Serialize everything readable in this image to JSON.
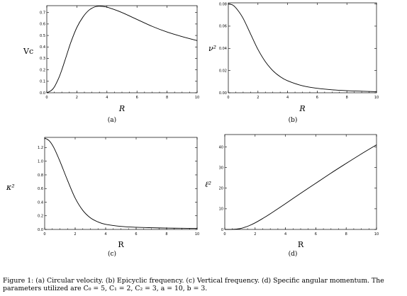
{
  "chart_data": [
    {
      "type": "line",
      "id": "a",
      "ylabel": "Vc",
      "xlabel": "R",
      "sublabel": "(a)",
      "xlim": [
        0,
        10
      ],
      "ylim": [
        0,
        0.76
      ],
      "xticks": [
        0,
        2,
        4,
        6,
        8,
        10
      ],
      "yticks": [
        0.0,
        0.1,
        0.2,
        0.3,
        0.4,
        0.5,
        0.6,
        0.7
      ],
      "ytick_labels": [
        "0.0",
        "0.1",
        "0.2",
        "0.3",
        "0.4",
        "0.5",
        "0.6",
        "0.7"
      ],
      "series": [
        {
          "x": [
            0,
            0.3,
            0.5,
            0.8,
            1.0,
            1.3,
            1.6,
            2.0,
            2.4,
            2.8,
            3.2,
            3.5,
            3.9,
            4.4,
            5.0,
            6.0,
            7.0,
            8.0,
            9.0,
            10.0
          ],
          "y": [
            0.0,
            0.02,
            0.05,
            0.13,
            0.2,
            0.32,
            0.44,
            0.57,
            0.66,
            0.72,
            0.75,
            0.755,
            0.75,
            0.73,
            0.7,
            0.64,
            0.58,
            0.53,
            0.49,
            0.455
          ]
        }
      ]
    },
    {
      "type": "line",
      "id": "b",
      "ylabel": "ν²",
      "xlabel": "R",
      "sublabel": "(b)",
      "xlim": [
        0,
        10
      ],
      "ylim": [
        0,
        0.081
      ],
      "xticks": [
        0,
        2,
        4,
        6,
        8,
        10
      ],
      "yticks": [
        0.0,
        0.02,
        0.04,
        0.06,
        0.08
      ],
      "ytick_labels": [
        "0.00",
        "0.02",
        "0.04",
        "0.06",
        "0.08"
      ],
      "series": [
        {
          "x": [
            0,
            0.3,
            0.6,
            1.0,
            1.5,
            2.0,
            2.5,
            3.0,
            3.5,
            4.0,
            5.0,
            6.0,
            7.0,
            8.0,
            9.0,
            10.0
          ],
          "y": [
            0.08,
            0.079,
            0.075,
            0.067,
            0.053,
            0.039,
            0.028,
            0.02,
            0.0145,
            0.0108,
            0.0063,
            0.004,
            0.0027,
            0.0019,
            0.0014,
            0.001
          ]
        }
      ]
    },
    {
      "type": "line",
      "id": "c",
      "ylabel": "κ²",
      "xlabel": "R",
      "sublabel": "(c)",
      "xlim": [
        0,
        10
      ],
      "ylim": [
        0,
        1.35
      ],
      "xticks": [
        0,
        2,
        4,
        6,
        8,
        10
      ],
      "yticks": [
        0.0,
        0.2,
        0.4,
        0.6,
        0.8,
        1.0,
        1.2
      ],
      "ytick_labels": [
        "0.0",
        "0.2",
        "0.4",
        "0.6",
        "0.8",
        "1.0",
        "1.2"
      ],
      "series": [
        {
          "x": [
            0,
            0.3,
            0.6,
            1.0,
            1.5,
            2.0,
            2.5,
            3.0,
            3.5,
            4.0,
            5.0,
            6.0,
            7.0,
            8.0,
            9.0,
            10.0
          ],
          "y": [
            1.34,
            1.3,
            1.2,
            1.0,
            0.72,
            0.46,
            0.28,
            0.17,
            0.11,
            0.075,
            0.045,
            0.032,
            0.025,
            0.02,
            0.017,
            0.015
          ]
        }
      ]
    },
    {
      "type": "line",
      "id": "d",
      "ylabel": "ℓ²",
      "xlabel": "R",
      "sublabel": "(d)",
      "xlim": [
        0,
        10
      ],
      "ylim": [
        0,
        46
      ],
      "xticks": [
        0,
        2,
        4,
        6,
        8,
        10
      ],
      "yticks": [
        0,
        10,
        20,
        30,
        40
      ],
      "ytick_labels": [
        "0",
        "10",
        "20",
        "30",
        "40"
      ],
      "series": [
        {
          "x": [
            0,
            0.5,
            1.0,
            1.3,
            1.6,
            2.0,
            2.5,
            3.0,
            4.0,
            5.0,
            6.0,
            7.0,
            8.0,
            9.0,
            10.0
          ],
          "y": [
            0,
            0.05,
            0.4,
            1.0,
            1.8,
            3.2,
            5.3,
            7.6,
            12.5,
            17.5,
            22.4,
            27.3,
            32.0,
            36.6,
            41.0
          ]
        }
      ]
    }
  ],
  "caption": {
    "line1": "Figure 1: (a) Circular velocity. (b) Epicyclic frequency. (c) Vertical frequency. (d) Specific angular momentum. The",
    "line2": "parameters utilized are C₀ = 5, C₁ = 2, C₂ = 3, a = 10, b = 3."
  }
}
